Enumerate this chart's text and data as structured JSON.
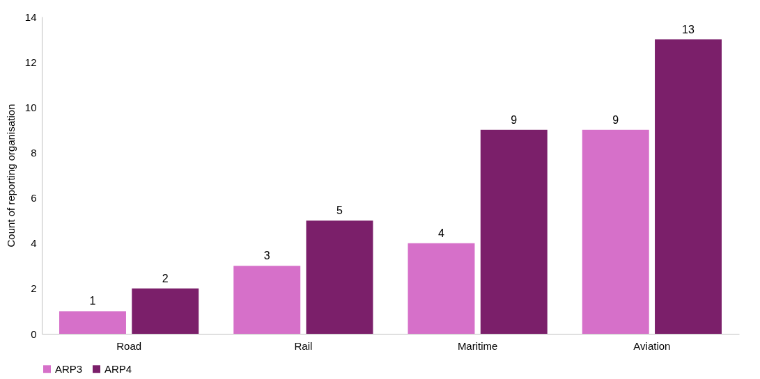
{
  "chart_data": {
    "type": "bar",
    "ylabel": "Count of reporting organisation",
    "categories": [
      "Road",
      "Rail",
      "Maritime",
      "Aviation"
    ],
    "series": [
      {
        "name": "ARP3",
        "color": "#d670c9",
        "values": [
          1,
          3,
          4,
          9
        ]
      },
      {
        "name": "ARP4",
        "color": "#7b1f6a",
        "values": [
          2,
          5,
          9,
          13
        ]
      }
    ],
    "ylim": [
      0,
      14
    ],
    "yticks": [
      0,
      2,
      4,
      6,
      8,
      10,
      12,
      14
    ],
    "data_labels": true,
    "legend": "bottom"
  }
}
